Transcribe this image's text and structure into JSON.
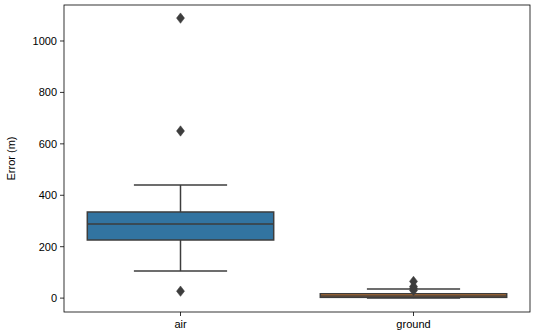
{
  "chart_data": {
    "type": "box",
    "ylabel": "Error (m)",
    "categories": [
      "air",
      "ground"
    ],
    "colors": [
      "#3274a1",
      "#e1812c"
    ],
    "boxes": [
      {
        "min": 105,
        "q1": 226,
        "median": 288,
        "q3": 335,
        "max": 440,
        "outliers": [
          1089,
          650,
          27
        ]
      },
      {
        "min": 0,
        "q1": 3,
        "median": 8,
        "q3": 17,
        "max": 35,
        "outliers": [
          65,
          45,
          38,
          30
        ]
      }
    ],
    "ylim": [
      -54,
      1140
    ],
    "yticks": [
      0,
      200,
      400,
      600,
      800,
      1000
    ]
  }
}
